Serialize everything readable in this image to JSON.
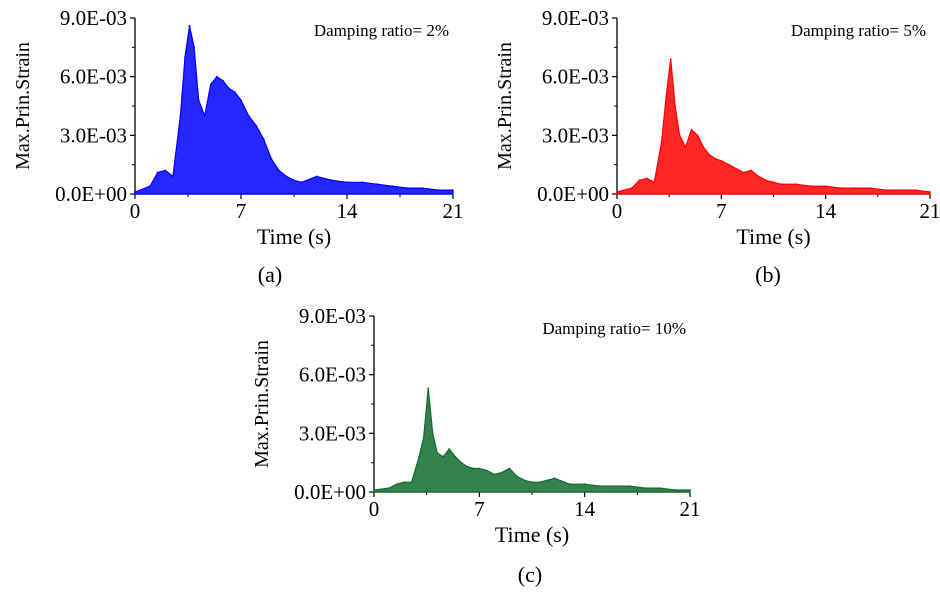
{
  "chart_data": [
    {
      "type": "line",
      "panel_label": "(a)",
      "annotation": "Damping ratio= 2%",
      "xlabel": "Time (s)",
      "ylabel": "Max.Prin.Strain",
      "xlim": [
        0,
        21
      ],
      "ylim": [
        0,
        0.009
      ],
      "xticks": [
        0,
        7,
        14,
        21
      ],
      "xtick_labels": [
        "0",
        "7",
        "14",
        "21"
      ],
      "yticks": [
        0,
        0.003,
        0.006,
        0.009
      ],
      "ytick_labels": [
        "0.0E+00",
        "3.0E-03",
        "6.0E-03",
        "9.0E-03"
      ],
      "grid": false,
      "color": "#0000ff",
      "series": [
        {
          "x": [
            0,
            1,
            1.5,
            2,
            2.5,
            3,
            3.3,
            3.6,
            3.9,
            4.2,
            4.6,
            5,
            5.4,
            5.8,
            6.2,
            6.6,
            7,
            7.5,
            8,
            8.5,
            9,
            9.5,
            10,
            10.5,
            11,
            12,
            13,
            14,
            15,
            16,
            17,
            18,
            19,
            20,
            21
          ],
          "y": [
            0.0001,
            0.0004,
            0.0011,
            0.0012,
            0.0009,
            0.004,
            0.007,
            0.0086,
            0.0075,
            0.0048,
            0.004,
            0.0056,
            0.006,
            0.0058,
            0.0054,
            0.0052,
            0.0048,
            0.004,
            0.0035,
            0.0028,
            0.0018,
            0.0012,
            0.0009,
            0.0007,
            0.0006,
            0.0009,
            0.0007,
            0.0006,
            0.0006,
            0.0005,
            0.0004,
            0.0003,
            0.0003,
            0.0002,
            0.0002
          ]
        }
      ]
    },
    {
      "type": "line",
      "panel_label": "(b)",
      "annotation": "Damping ratio= 5%",
      "xlabel": "Time (s)",
      "ylabel": "Max.Prin.Strain",
      "xlim": [
        0,
        21
      ],
      "ylim": [
        0,
        0.009
      ],
      "xticks": [
        0,
        7,
        14,
        21
      ],
      "xtick_labels": [
        "0",
        "7",
        "14",
        "21"
      ],
      "yticks": [
        0,
        0.003,
        0.006,
        0.009
      ],
      "ytick_labels": [
        "0.0E+00",
        "3.0E-03",
        "6.0E-03",
        "9.0E-03"
      ],
      "grid": false,
      "color": "#ff0000",
      "series": [
        {
          "x": [
            0,
            1,
            1.5,
            2,
            2.5,
            3,
            3.3,
            3.6,
            3.9,
            4.2,
            4.6,
            5,
            5.4,
            5.8,
            6.2,
            6.6,
            7,
            7.5,
            8,
            8.5,
            9,
            9.5,
            10,
            10.5,
            11,
            12,
            13,
            14,
            15,
            16,
            17,
            18,
            19,
            20,
            21
          ],
          "y": [
            0.0001,
            0.0003,
            0.0007,
            0.0008,
            0.0006,
            0.0027,
            0.005,
            0.0069,
            0.0045,
            0.003,
            0.0024,
            0.0033,
            0.003,
            0.0024,
            0.002,
            0.0018,
            0.0017,
            0.0015,
            0.0013,
            0.0011,
            0.0012,
            0.0009,
            0.0007,
            0.0006,
            0.0005,
            0.0005,
            0.0004,
            0.0004,
            0.0003,
            0.0003,
            0.0003,
            0.0002,
            0.0002,
            0.0002,
            0.0001
          ]
        }
      ]
    },
    {
      "type": "line",
      "panel_label": "(c)",
      "annotation": "Damping ratio= 10%",
      "xlabel": "Time (s)",
      "ylabel": "Max.Prin.Strain",
      "xlim": [
        0,
        21
      ],
      "ylim": [
        0,
        0.009
      ],
      "xticks": [
        0,
        7,
        14,
        21
      ],
      "xtick_labels": [
        "0",
        "7",
        "14",
        "21"
      ],
      "yticks": [
        0,
        0.003,
        0.006,
        0.009
      ],
      "ytick_labels": [
        "0.0E+00",
        "3.0E-03",
        "6.0E-03",
        "9.0E-03"
      ],
      "grid": false,
      "color": "#116b2e",
      "series": [
        {
          "x": [
            0,
            1,
            1.5,
            2,
            2.5,
            3,
            3.3,
            3.6,
            3.9,
            4.2,
            4.6,
            5,
            5.4,
            5.8,
            6.2,
            6.6,
            7,
            7.5,
            8,
            8.5,
            9,
            9.5,
            10,
            10.5,
            11,
            12,
            13,
            14,
            15,
            16,
            17,
            18,
            19,
            20,
            21
          ],
          "y": [
            0.0001,
            0.0002,
            0.0004,
            0.0005,
            0.0005,
            0.0018,
            0.0028,
            0.0053,
            0.003,
            0.002,
            0.0018,
            0.0022,
            0.0018,
            0.0015,
            0.0013,
            0.0012,
            0.0012,
            0.0011,
            0.0009,
            0.001,
            0.0012,
            0.0008,
            0.0006,
            0.0005,
            0.0005,
            0.0007,
            0.0004,
            0.0004,
            0.0003,
            0.0003,
            0.0003,
            0.0002,
            0.0002,
            0.0001,
            0.0001
          ]
        }
      ]
    }
  ]
}
